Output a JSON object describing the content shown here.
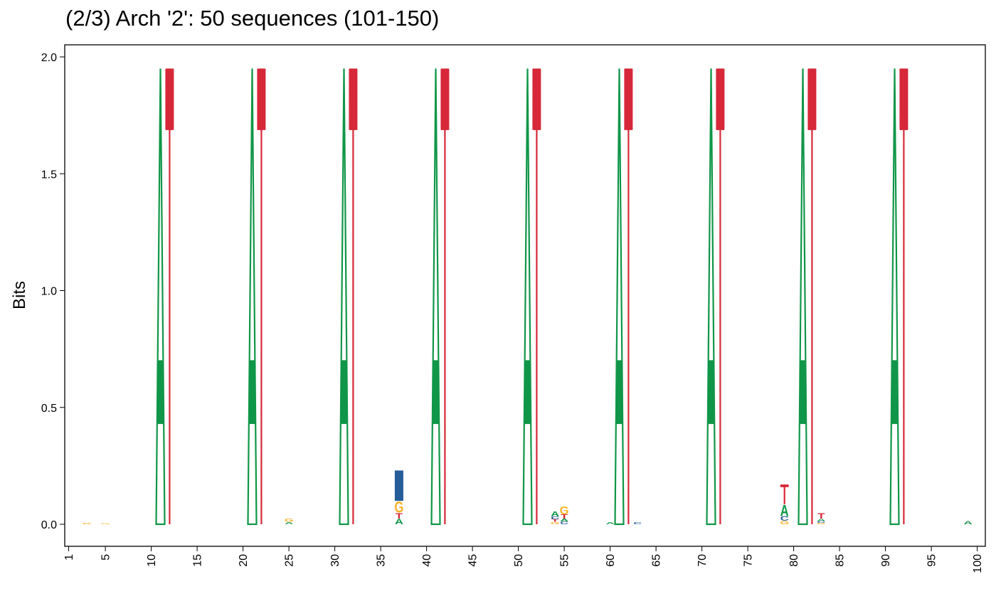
{
  "title": "(2/3) Arch '2': 50 sequences (101-150)",
  "colors": {
    "A": "#109648",
    "C": "#255C99",
    "G": "#F7B32B",
    "T": "#D62839"
  },
  "chart_data": {
    "type": "sequence-logo",
    "title": "(2/3) Arch '2': 50 sequences (101-150)",
    "ylabel": "Bits",
    "xlabel": "",
    "ylim": [
      0,
      2
    ],
    "xlim": [
      1,
      100
    ],
    "yticks": [
      "0.0",
      "0.5",
      "1.0",
      "1.5",
      "2.0"
    ],
    "xticks": [
      1,
      5,
      10,
      15,
      20,
      25,
      30,
      35,
      40,
      45,
      50,
      55,
      60,
      65,
      70,
      75,
      80,
      85,
      90,
      95,
      100
    ],
    "grid": false,
    "legend": "none",
    "positions": [
      {
        "pos": 3,
        "letters": [
          {
            "base": "G",
            "bits": 0.005
          }
        ]
      },
      {
        "pos": 5,
        "letters": [
          {
            "base": "G",
            "bits": 0.003
          }
        ]
      },
      {
        "pos": 11,
        "letters": [
          {
            "base": "A",
            "bits": 1.95
          }
        ]
      },
      {
        "pos": 12,
        "letters": [
          {
            "base": "T",
            "bits": 1.95
          }
        ]
      },
      {
        "pos": 21,
        "letters": [
          {
            "base": "A",
            "bits": 1.95
          }
        ]
      },
      {
        "pos": 22,
        "letters": [
          {
            "base": "T",
            "bits": 1.95
          }
        ]
      },
      {
        "pos": 25,
        "letters": [
          {
            "base": "A",
            "bits": 0.01
          },
          {
            "base": "G",
            "bits": 0.015
          }
        ]
      },
      {
        "pos": 31,
        "letters": [
          {
            "base": "A",
            "bits": 1.95
          }
        ]
      },
      {
        "pos": 32,
        "letters": [
          {
            "base": "T",
            "bits": 1.95
          }
        ]
      },
      {
        "pos": 37,
        "letters": [
          {
            "base": "A",
            "bits": 0.025
          },
          {
            "base": "T",
            "bits": 0.025
          },
          {
            "base": "G",
            "bits": 0.05
          },
          {
            "base": "C",
            "bits": 0.13
          }
        ]
      },
      {
        "pos": 41,
        "letters": [
          {
            "base": "A",
            "bits": 1.95
          }
        ]
      },
      {
        "pos": 42,
        "letters": [
          {
            "base": "T",
            "bits": 1.95
          }
        ]
      },
      {
        "pos": 51,
        "letters": [
          {
            "base": "A",
            "bits": 1.95
          }
        ]
      },
      {
        "pos": 52,
        "letters": [
          {
            "base": "T",
            "bits": 1.95
          }
        ]
      },
      {
        "pos": 54,
        "letters": [
          {
            "base": "G",
            "bits": 0.01
          },
          {
            "base": "T",
            "bits": 0.012
          },
          {
            "base": "C",
            "bits": 0.012
          },
          {
            "base": "A",
            "bits": 0.022
          }
        ]
      },
      {
        "pos": 55,
        "letters": [
          {
            "base": "C",
            "bits": 0.012
          },
          {
            "base": "A",
            "bits": 0.012
          },
          {
            "base": "T",
            "bits": 0.018
          },
          {
            "base": "G",
            "bits": 0.035
          }
        ]
      },
      {
        "pos": 60,
        "letters": [
          {
            "base": "A",
            "bits": 0.01
          }
        ]
      },
      {
        "pos": 61,
        "letters": [
          {
            "base": "A",
            "bits": 1.95
          }
        ]
      },
      {
        "pos": 62,
        "letters": [
          {
            "base": "T",
            "bits": 1.95
          }
        ]
      },
      {
        "pos": 63,
        "letters": [
          {
            "base": "C",
            "bits": 0.01
          }
        ]
      },
      {
        "pos": 71,
        "letters": [
          {
            "base": "A",
            "bits": 1.95
          }
        ]
      },
      {
        "pos": 72,
        "letters": [
          {
            "base": "T",
            "bits": 1.95
          }
        ]
      },
      {
        "pos": 79,
        "letters": [
          {
            "base": "G",
            "bits": 0.015
          },
          {
            "base": "C",
            "bits": 0.02
          },
          {
            "base": "A",
            "bits": 0.05
          },
          {
            "base": "T",
            "bits": 0.085
          }
        ]
      },
      {
        "pos": 81,
        "letters": [
          {
            "base": "A",
            "bits": 1.95
          }
        ]
      },
      {
        "pos": 82,
        "letters": [
          {
            "base": "T",
            "bits": 1.95
          }
        ]
      },
      {
        "pos": 83,
        "letters": [
          {
            "base": "G",
            "bits": 0.006
          },
          {
            "base": "C",
            "bits": 0.008
          },
          {
            "base": "A",
            "bits": 0.01
          },
          {
            "base": "T",
            "bits": 0.025
          }
        ]
      },
      {
        "pos": 91,
        "letters": [
          {
            "base": "A",
            "bits": 1.95
          }
        ]
      },
      {
        "pos": 92,
        "letters": [
          {
            "base": "T",
            "bits": 1.95
          }
        ]
      },
      {
        "pos": 99,
        "letters": [
          {
            "base": "A",
            "bits": 0.015
          }
        ]
      }
    ]
  }
}
